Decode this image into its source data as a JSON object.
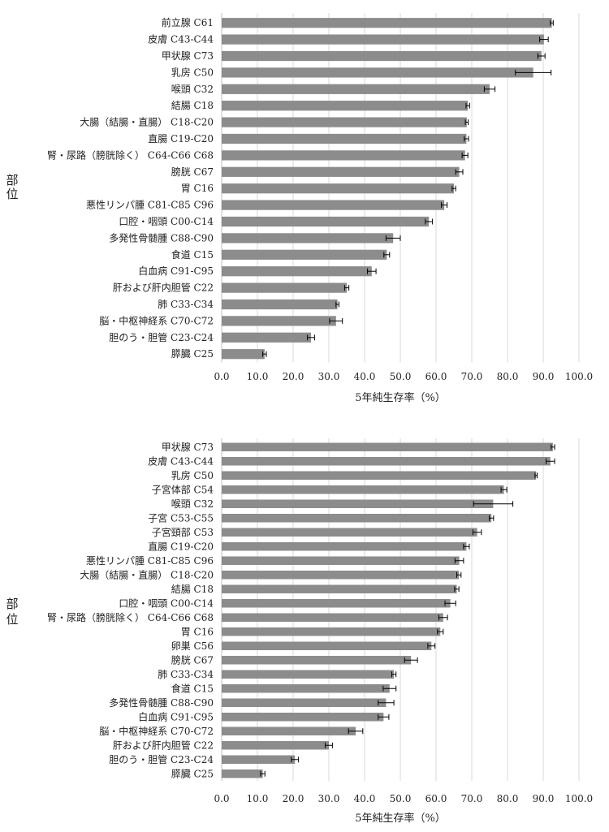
{
  "chart_data": [
    {
      "type": "bar",
      "orientation": "horizontal",
      "xlabel": "5年純生存率（%）",
      "ylabel": "部位",
      "xlim": [
        0,
        100
      ],
      "xticks": [
        "0.0",
        "10.0",
        "20.0",
        "30.0",
        "40.0",
        "50.0",
        "60.0",
        "70.0",
        "80.0",
        "90.0",
        "100.0"
      ],
      "grid": "vertical",
      "bar_color": "#8c8c8c",
      "categories": [
        "前立腺 C61",
        "皮膚 C43-C44",
        "甲状腺 C73",
        "乳房 C50",
        "喉頭 C32",
        "結腸 C18",
        "大腸（結腸・直腸） C18-C20",
        "直腸 C19-C20",
        "腎・尿路（膀胱除く） C64-C66 C68",
        "膀胱 C67",
        "胃 C16",
        "悪性リンパ腫 C81-C85 C96",
        "口腔・咽頭 C00-C14",
        "多発性骨髄腫 C88-C90",
        "食道 C15",
        "白血病 C91-C95",
        "肝および肝内胆管 C22",
        "肺 C33-C34",
        "脳・中枢神経系 C70-C72",
        "胆のう・胆管 C23-C24",
        "膵臓 C25"
      ],
      "values": [
        92.4,
        90.2,
        89.5,
        87.2,
        75.0,
        68.9,
        68.6,
        68.5,
        68.1,
        66.5,
        65.0,
        62.3,
        58.0,
        48.0,
        46.2,
        42.0,
        35.0,
        32.4,
        32.0,
        25.0,
        12.0
      ],
      "error": [
        0.4,
        1.2,
        1.0,
        5.0,
        1.5,
        0.5,
        0.4,
        0.6,
        0.8,
        1.0,
        0.5,
        0.8,
        1.0,
        2.0,
        0.8,
        1.2,
        0.6,
        0.4,
        1.8,
        1.0,
        0.5
      ]
    },
    {
      "type": "bar",
      "orientation": "horizontal",
      "xlabel": "5年純生存率（%）",
      "ylabel": "部位",
      "xlim": [
        0,
        100
      ],
      "xticks": [
        "0.0",
        "10.0",
        "20.0",
        "30.0",
        "40.0",
        "50.0",
        "60.0",
        "70.0",
        "80.0",
        "90.0",
        "100.0"
      ],
      "grid": "vertical",
      "bar_color": "#8c8c8c",
      "categories": [
        "甲状腺 C73",
        "皮膚 C43-C44",
        "乳房 C50",
        "子宮体部 C54",
        "喉頭 C32",
        "子宮 C53-C55",
        "子宮頸部 C53",
        "直腸 C19-C20",
        "悪性リンパ腫 C81-C85 C96",
        "大腸（結腸・直腸） C18-C20",
        "結腸 C18",
        "口腔・咽頭 C00-C14",
        "腎・尿路（膀胱除く） C64-C66 C68",
        "胃 C16",
        "卵巣 C56",
        "膀胱 C67",
        "肺 C33-C34",
        "食道 C15",
        "多発性骨髄腫 C88-C90",
        "白血病 C91-C95",
        "脳・中枢神経系 C70-C72",
        "肝および肝内胆管 C22",
        "胆のう・胆管 C23-C24",
        "膵臓 C25"
      ],
      "values": [
        92.7,
        92.0,
        88.0,
        79.0,
        76.0,
        75.5,
        71.5,
        68.5,
        66.5,
        66.4,
        65.8,
        64.0,
        62.0,
        61.2,
        58.7,
        53.0,
        48.2,
        47.0,
        46.0,
        45.3,
        37.5,
        30.0,
        20.5,
        11.5
      ],
      "error": [
        0.5,
        1.2,
        0.3,
        0.8,
        5.5,
        0.6,
        1.2,
        0.8,
        1.2,
        0.6,
        0.6,
        1.5,
        1.2,
        0.8,
        1.0,
        1.8,
        0.6,
        1.8,
        2.2,
        1.5,
        2.0,
        1.0,
        1.0,
        0.6
      ]
    }
  ]
}
